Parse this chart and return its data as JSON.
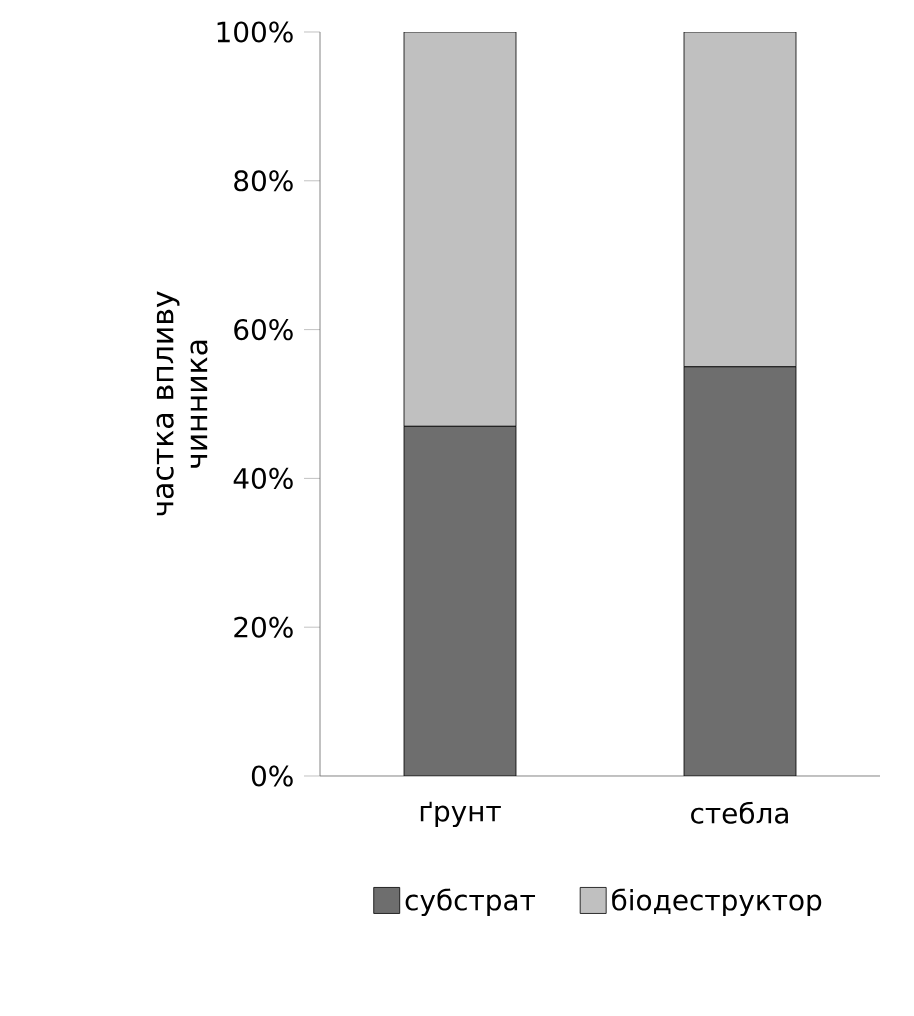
{
  "chart_data": {
    "type": "bar",
    "stacked": true,
    "ylabel": "частка впливу чинника",
    "categories": [
      "ґрунт",
      "стебла"
    ],
    "series": [
      {
        "name": "субстрат",
        "color": "#6e6e6e",
        "values": [
          47,
          55
        ]
      },
      {
        "name": "біодеструктор",
        "color": "#c0c0c0",
        "values": [
          53,
          45
        ]
      }
    ],
    "ylim": [
      0,
      100
    ],
    "yticks": [
      {
        "value": 0,
        "label": "0%"
      },
      {
        "value": 20,
        "label": "20%"
      },
      {
        "value": 40,
        "label": "40%"
      },
      {
        "value": 60,
        "label": "60%"
      },
      {
        "value": 80,
        "label": "80%"
      },
      {
        "value": 100,
        "label": "100%"
      }
    ],
    "grid": false,
    "legend": "bottom"
  }
}
